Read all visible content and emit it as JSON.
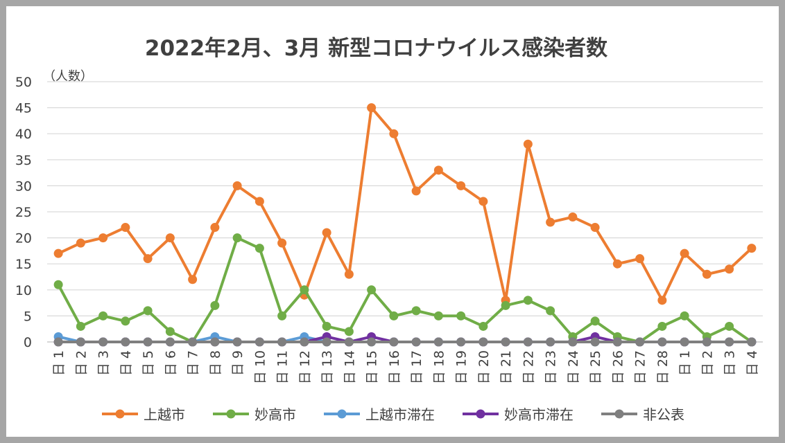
{
  "chart_data": {
    "type": "line",
    "title": "2022年2月、3月 新型コロナウイルス感染者数",
    "ylabel": "（人数）",
    "ylim": [
      0,
      50
    ],
    "yticks": [
      0,
      5,
      10,
      15,
      20,
      25,
      30,
      35,
      40,
      45,
      50
    ],
    "grid": true,
    "legend": "bottom",
    "categories": [
      "1日",
      "2日",
      "3日",
      "4日",
      "5日",
      "6日",
      "7日",
      "8日",
      "9日",
      "10日",
      "11日",
      "12日",
      "13日",
      "14日",
      "15日",
      "16日",
      "17日",
      "18日",
      "19日",
      "20日",
      "21日",
      "22日",
      "23日",
      "24日",
      "25日",
      "26日",
      "27日",
      "28日",
      "1日",
      "2日",
      "3日",
      "4日"
    ],
    "series": [
      {
        "name": "上越市",
        "color": "#ed7d31",
        "values": [
          17,
          19,
          20,
          22,
          16,
          20,
          12,
          22,
          30,
          27,
          19,
          9,
          21,
          13,
          45,
          40,
          29,
          33,
          30,
          27,
          8,
          38,
          23,
          24,
          22,
          15,
          16,
          8,
          17,
          13,
          14,
          18
        ]
      },
      {
        "name": "妙高市",
        "color": "#70ad47",
        "values": [
          11,
          3,
          5,
          4,
          6,
          2,
          0,
          7,
          20,
          18,
          5,
          10,
          3,
          2,
          10,
          5,
          6,
          5,
          5,
          3,
          7,
          8,
          6,
          1,
          4,
          1,
          0,
          3,
          5,
          1,
          3,
          0
        ]
      },
      {
        "name": "上越市滞在",
        "color": "#5b9bd5",
        "values": [
          1,
          0,
          0,
          0,
          0,
          0,
          0,
          1,
          0,
          0,
          0,
          1,
          0,
          0,
          0,
          0,
          0,
          0,
          0,
          0,
          0,
          0,
          0,
          0,
          0,
          0,
          0,
          0,
          0,
          0,
          0,
          0
        ]
      },
      {
        "name": "妙高市滞在",
        "color": "#7030a0",
        "values": [
          0,
          0,
          0,
          0,
          0,
          0,
          0,
          0,
          0,
          0,
          0,
          0,
          1,
          0,
          1,
          0,
          0,
          0,
          0,
          0,
          0,
          0,
          0,
          0,
          1,
          0,
          0,
          0,
          0,
          0,
          0,
          0
        ]
      },
      {
        "name": "非公表",
        "color": "#7f7f7f",
        "values": [
          0,
          0,
          0,
          0,
          0,
          0,
          0,
          0,
          0,
          0,
          0,
          0,
          0,
          0,
          0,
          0,
          0,
          0,
          0,
          0,
          0,
          0,
          0,
          0,
          0,
          0,
          0,
          0,
          0,
          0,
          0,
          0
        ]
      }
    ]
  }
}
